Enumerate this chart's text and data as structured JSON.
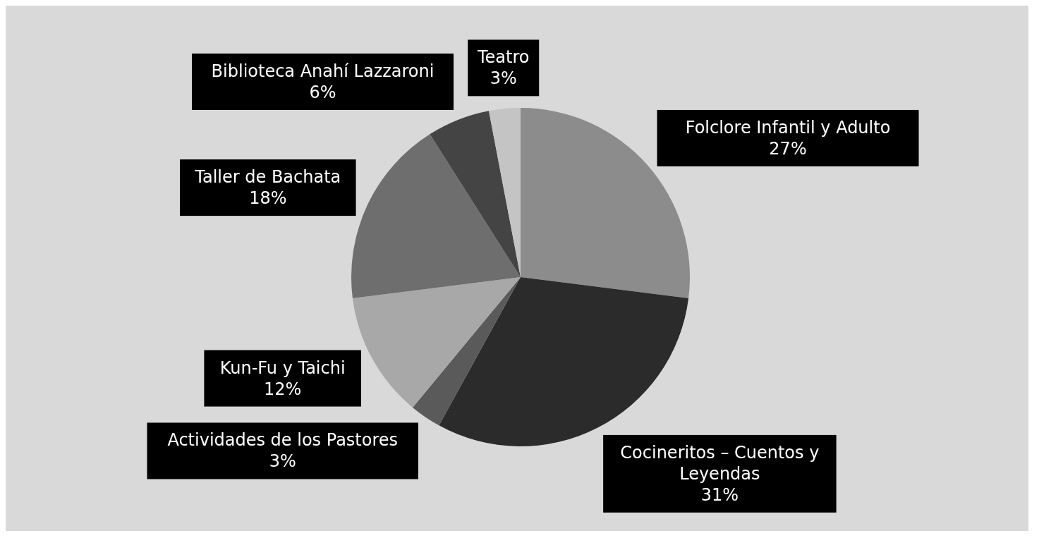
{
  "chart_data": {
    "type": "pie",
    "categories": [
      "Folclore Infantil y Adulto",
      "Cocineritos – Cuentos y Leyendas",
      "Actividades de los Pastores",
      "Kun-Fu y Taichi",
      "Taller de Bachata",
      "Biblioteca Anahí Lazzaroni",
      "Teatro"
    ],
    "values": [
      27,
      31,
      3,
      12,
      18,
      6,
      3
    ],
    "value_labels": [
      "27%",
      "31%",
      "3%",
      "12%",
      "18%",
      "6%",
      "3%"
    ],
    "colors": [
      "#8c8c8c",
      "#2b2b2b",
      "#5a5a5a",
      "#a8a8a8",
      "#6e6e6e",
      "#444444",
      "#c4c4c4"
    ],
    "legend": false
  }
}
